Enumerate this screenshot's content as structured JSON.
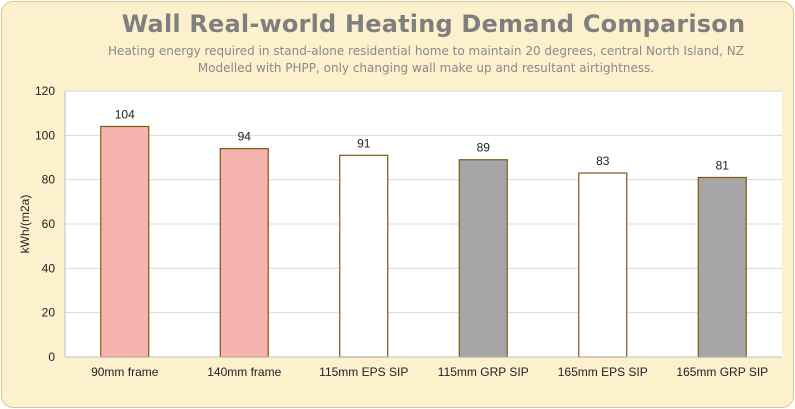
{
  "chart_data": {
    "type": "bar",
    "title": "Wall Real-world Heating Demand Comparison",
    "subtitle_lines": [
      "Heating energy required in stand-alone residential home to maintain 20 degrees, central North Island, NZ",
      "Modelled with PHPP, only changing wall make up and resultant airtightness."
    ],
    "ylabel": "kWh/(m2a)",
    "xlabel": "",
    "ylim": [
      0,
      120
    ],
    "yticks": [
      0,
      20,
      40,
      60,
      80,
      100,
      120
    ],
    "grid": true,
    "categories": [
      "90mm frame",
      "140mm frame",
      "115mm EPS SIP",
      "115mm GRP SIP",
      "165mm EPS SIP",
      "165mm GRP SIP"
    ],
    "values": [
      104,
      94,
      91,
      89,
      83,
      81
    ],
    "bar_colors": [
      "#f7b3ae",
      "#f7b3ae",
      "#ffffff",
      "#a6a6a6",
      "#ffffff",
      "#a6a6a6"
    ],
    "bar_edge_color": "#7a5c10"
  }
}
